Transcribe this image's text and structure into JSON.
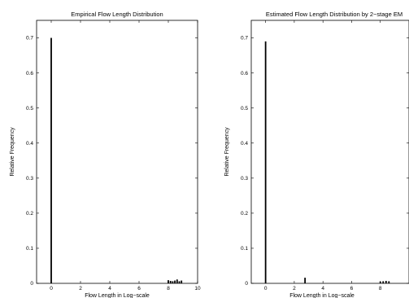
{
  "chart_data": [
    {
      "type": "bar",
      "title": "Empirical Flow Length Distribution",
      "xlabel": "Flow Length in Log−scale",
      "ylabel": "Relative Frequency",
      "xlim": [
        -1,
        10
      ],
      "ylim": [
        0,
        0.75
      ],
      "xticks": [
        0,
        2,
        4,
        6,
        8,
        10
      ],
      "yticks": [
        0,
        0.1,
        0.2,
        0.3,
        0.4,
        0.5,
        0.6,
        0.7
      ],
      "grid": false,
      "x": [
        0,
        8.0,
        8.15,
        8.3,
        8.45,
        8.6,
        8.75,
        8.9
      ],
      "values": [
        0.7,
        0.009,
        0.007,
        0.006,
        0.008,
        0.011,
        0.006,
        0.008
      ]
    },
    {
      "type": "bar",
      "title": "Estimated Flow Length Distribution by 2−stage EM",
      "xlabel": "Flow Length in Log−scale",
      "ylabel": "Relative Frequency",
      "xlim": [
        -1,
        10
      ],
      "ylim": [
        0,
        0.75
      ],
      "xticks": [
        0,
        2,
        4,
        6,
        8
      ],
      "yticks": [
        0,
        0.1,
        0.2,
        0.3,
        0.4,
        0.5,
        0.6,
        0.7
      ],
      "grid": false,
      "x": [
        0,
        2.75,
        8.0,
        8.2,
        8.4,
        8.6
      ],
      "values": [
        0.69,
        0.016,
        0.005,
        0.006,
        0.007,
        0.006
      ]
    }
  ]
}
